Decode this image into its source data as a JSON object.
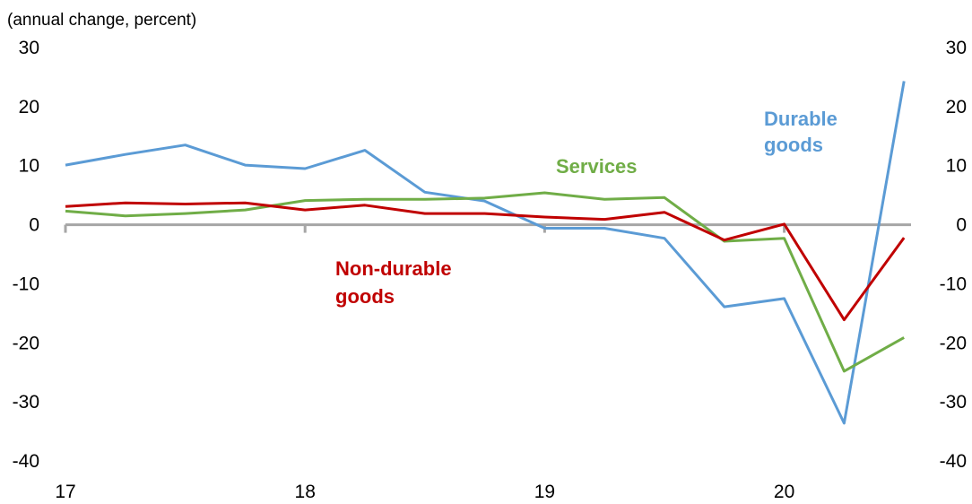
{
  "chart_data": {
    "type": "line",
    "unit_label": "(annual change, percent)",
    "x_categories": [
      "17",
      "18",
      "19",
      "20"
    ],
    "x_points": [
      "2017Q1",
      "2017Q2",
      "2017Q3",
      "2017Q4",
      "2018Q1",
      "2018Q2",
      "2018Q3",
      "2018Q4",
      "2019Q1",
      "2019Q2",
      "2019Q3",
      "2019Q4",
      "2020Q1",
      "2020Q2",
      "2020Q3"
    ],
    "ylim": [
      -40,
      30
    ],
    "y_ticks": [
      -40,
      -30,
      -20,
      -10,
      0,
      10,
      20,
      30
    ],
    "grid": false,
    "series": [
      {
        "name": "Durable goods",
        "label_lines": [
          "Durable",
          "goods"
        ],
        "color": "#5b9bd5",
        "values": [
          10.1,
          11.9,
          13.5,
          10.1,
          9.5,
          12.6,
          5.5,
          4.0,
          -0.6,
          -0.6,
          -2.3,
          -13.9,
          -12.5,
          -33.6,
          24.3
        ]
      },
      {
        "name": "Services",
        "label_lines": [
          "Services"
        ],
        "color": "#70ad47",
        "values": [
          2.3,
          1.5,
          1.9,
          2.5,
          4.1,
          4.3,
          4.3,
          4.5,
          5.4,
          4.3,
          4.6,
          -2.8,
          -2.3,
          -24.8,
          -19.1
        ]
      },
      {
        "name": "Non-durable goods",
        "label_lines": [
          "Non-durable",
          "goods"
        ],
        "color": "#c00000",
        "values": [
          3.1,
          3.7,
          3.5,
          3.7,
          2.5,
          3.3,
          1.9,
          1.9,
          1.3,
          0.9,
          2.1,
          -2.6,
          0.1,
          -16.1,
          -2.2
        ]
      }
    ]
  }
}
